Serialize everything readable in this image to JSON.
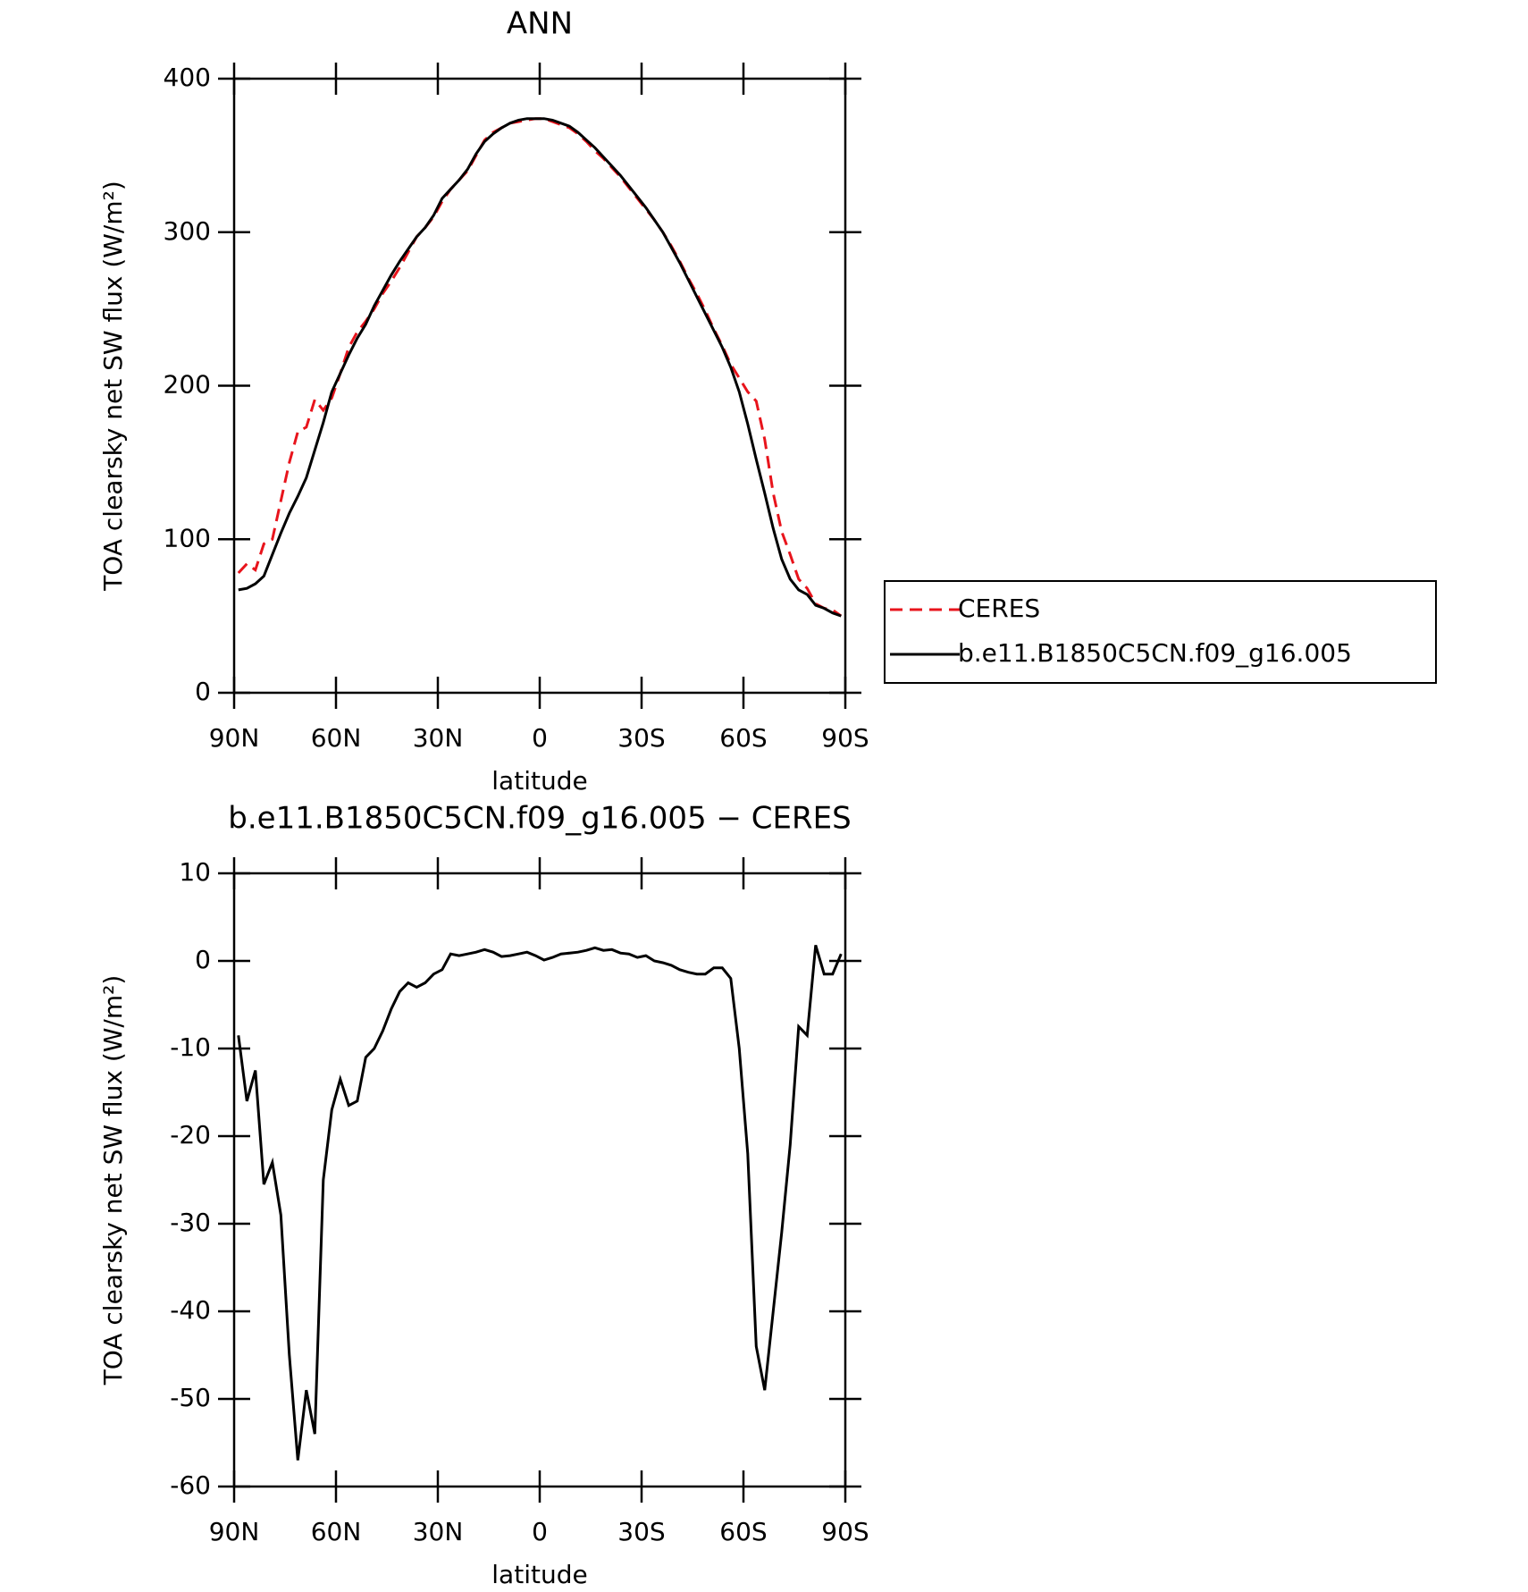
{
  "chart_data": [
    {
      "type": "line",
      "title": "ANN",
      "xlabel": "latitude",
      "ylabel": "TOA clearsky net SW flux (W/m²)",
      "x": [
        88.75,
        86.25,
        83.75,
        81.25,
        78.75,
        76.25,
        73.75,
        71.25,
        68.75,
        66.25,
        63.75,
        61.25,
        58.75,
        56.25,
        53.75,
        51.25,
        48.75,
        46.25,
        43.75,
        41.25,
        38.75,
        36.25,
        33.75,
        31.25,
        28.75,
        26.25,
        23.75,
        21.25,
        18.75,
        16.25,
        13.75,
        11.25,
        8.75,
        6.25,
        3.75,
        1.25,
        -1.25,
        -3.75,
        -6.25,
        -8.75,
        -11.25,
        -13.75,
        -16.25,
        -18.75,
        -21.25,
        -23.75,
        -26.25,
        -28.75,
        -31.25,
        -33.75,
        -36.25,
        -38.75,
        -41.25,
        -43.75,
        -46.25,
        -48.75,
        -51.25,
        -53.75,
        -56.25,
        -58.75,
        -61.25,
        -63.75,
        -66.25,
        -68.75,
        -71.25,
        -73.75,
        -76.25,
        -78.75,
        -81.25,
        -83.75,
        -86.25,
        -88.75
      ],
      "series": [
        {
          "name": "CERES",
          "color": "#e8141c",
          "dash": "dashed",
          "values": [
            78,
            84,
            80,
            97,
            100,
            125,
            150,
            170,
            173,
            191,
            184,
            192,
            208,
            225,
            235,
            242,
            250,
            260,
            268,
            277,
            287,
            297,
            303,
            310,
            320,
            328,
            334,
            340,
            350,
            360,
            365,
            368,
            371,
            372,
            373,
            374,
            374,
            372,
            370,
            368,
            364,
            359,
            353,
            348,
            342,
            336,
            329,
            322,
            315,
            308,
            300,
            291,
            281,
            270,
            260,
            249,
            237,
            226,
            214,
            205,
            196,
            190,
            165,
            130,
            105,
            90,
            74,
            68,
            58,
            55,
            54,
            50
          ]
        },
        {
          "name": "b.e11.B1850C5CN.f09_g16.005",
          "color": "#000000",
          "dash": "solid",
          "values": [
            67,
            68,
            71,
            76,
            90,
            104,
            117,
            128,
            140,
            158,
            176,
            196,
            208,
            220,
            231,
            240,
            252,
            262,
            272,
            281,
            289,
            297,
            303,
            311,
            322,
            328,
            334,
            341,
            351,
            359,
            364,
            368,
            371,
            373,
            374,
            374,
            374,
            373,
            371,
            369,
            365,
            360,
            355,
            349,
            343,
            337,
            330,
            323,
            316,
            308,
            300,
            290,
            280,
            269,
            258,
            247,
            236,
            225,
            212,
            196,
            175,
            152,
            130,
            107,
            87,
            74,
            67,
            64,
            57,
            55,
            52,
            50
          ]
        }
      ],
      "xlim": [
        90,
        -90
      ],
      "xticks": [
        {
          "value": 90,
          "label": "90N"
        },
        {
          "value": 60,
          "label": "60N"
        },
        {
          "value": 30,
          "label": "30N"
        },
        0,
        {
          "value": -30,
          "label": "30S"
        },
        {
          "value": -60,
          "label": "60S"
        },
        {
          "value": -90,
          "label": "90S"
        }
      ],
      "ylim": [
        0,
        400
      ],
      "yticks": [
        0,
        100,
        200,
        300,
        400
      ],
      "legend": "right"
    },
    {
      "type": "line",
      "title": "b.e11.B1850C5CN.f09_g16.005 − CERES",
      "xlabel": "latitude",
      "ylabel": "TOA clearsky net SW flux (W/m²)",
      "x": [
        88.75,
        86.25,
        83.75,
        81.25,
        78.75,
        76.25,
        73.75,
        71.25,
        68.75,
        66.25,
        63.75,
        61.25,
        58.75,
        56.25,
        53.75,
        51.25,
        48.75,
        46.25,
        43.75,
        41.25,
        38.75,
        36.25,
        33.75,
        31.25,
        28.75,
        26.25,
        23.75,
        21.25,
        18.75,
        16.25,
        13.75,
        11.25,
        8.75,
        6.25,
        3.75,
        1.25,
        -1.25,
        -3.75,
        -6.25,
        -8.75,
        -11.25,
        -13.75,
        -16.25,
        -18.75,
        -21.25,
        -23.75,
        -26.25,
        -28.75,
        -31.25,
        -33.75,
        -36.25,
        -38.75,
        -41.25,
        -43.75,
        -46.25,
        -48.75,
        -51.25,
        -53.75,
        -56.25,
        -58.75,
        -61.25,
        -63.75,
        -66.25,
        -68.75,
        -71.25,
        -73.75,
        -76.25,
        -78.75,
        -81.25,
        -83.75,
        -86.25,
        -88.75
      ],
      "color": "#000000",
      "dash": "solid",
      "values": [
        -8.5,
        -16,
        -12.5,
        -25.5,
        -23,
        -29,
        -45,
        -57,
        -49,
        -54,
        -25,
        -17,
        -13.5,
        -16.5,
        -16,
        -11,
        -10,
        -8,
        -5.5,
        -3.5,
        -2.5,
        -3,
        -2.5,
        -1.5,
        -1,
        0.8,
        0.6,
        0.8,
        1,
        1.3,
        1,
        0.5,
        0.6,
        0.8,
        1,
        0.6,
        0.1,
        0.4,
        0.8,
        0.9,
        1,
        1.2,
        1.5,
        1.2,
        1.3,
        0.9,
        0.8,
        0.4,
        0.6,
        0,
        -0.2,
        -0.5,
        -1,
        -1.3,
        -1.5,
        -1.5,
        -0.8,
        -0.8,
        -2,
        -10,
        -22,
        -44,
        -49,
        -40,
        -31,
        -21,
        -7.5,
        -8.5,
        1.8,
        -1.5,
        -1.5,
        0.8
      ],
      "xlim": [
        90,
        -90
      ],
      "xticks": [
        {
          "value": 90,
          "label": "90N"
        },
        {
          "value": 60,
          "label": "60N"
        },
        {
          "value": 30,
          "label": "30N"
        },
        0,
        {
          "value": -30,
          "label": "30S"
        },
        {
          "value": -60,
          "label": "60S"
        },
        {
          "value": -90,
          "label": "90S"
        }
      ],
      "ylim": [
        -60,
        10
      ],
      "yticks": [
        -60,
        -50,
        -40,
        -30,
        -20,
        -10,
        0,
        10
      ]
    }
  ]
}
